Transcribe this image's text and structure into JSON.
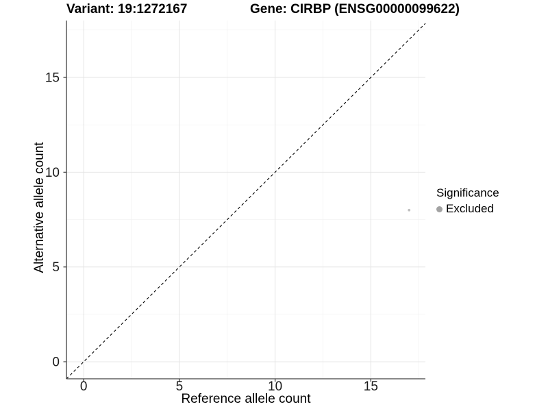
{
  "title": {
    "variant": "Variant: 19:1272167",
    "gene": "Gene: CIRBP (ENSG00000099622)"
  },
  "legend": {
    "title": "Significance",
    "items": [
      {
        "label": "Excluded",
        "color": "#a3a3a3"
      }
    ]
  },
  "chart_data": {
    "type": "scatter",
    "title": "Variant: 19:1272167   Gene: CIRBP (ENSG00000099622)",
    "xlabel": "Reference allele count",
    "ylabel": "Alternative allele count",
    "xlim": [
      -0.9,
      17.85
    ],
    "ylim": [
      -0.9,
      18.0
    ],
    "x_ticks": [
      0,
      5,
      10,
      15
    ],
    "y_ticks": [
      0,
      5,
      10,
      15
    ],
    "x_minor_ticks": [
      2.5,
      7.5,
      12.5,
      17.5
    ],
    "y_minor_ticks": [
      2.5,
      7.5,
      12.5,
      17.5
    ],
    "grid": true,
    "legend_position": "right",
    "series": [
      {
        "name": "Excluded",
        "color": "#bfbfbf",
        "point_radius": 1.9,
        "points": [
          {
            "x": 17,
            "y": 8
          }
        ]
      }
    ],
    "reference_line": {
      "slope": 1,
      "intercept": 0,
      "style": "dashed",
      "color": "#000000"
    }
  },
  "colors": {
    "background": "#ffffff",
    "axis_line": "#404040",
    "grid_major": "#e4e4e4",
    "grid_minor": "#f1f1f1",
    "tick_mark": "#333333",
    "tick_text": "#1a1a1a",
    "text": "#000000"
  }
}
